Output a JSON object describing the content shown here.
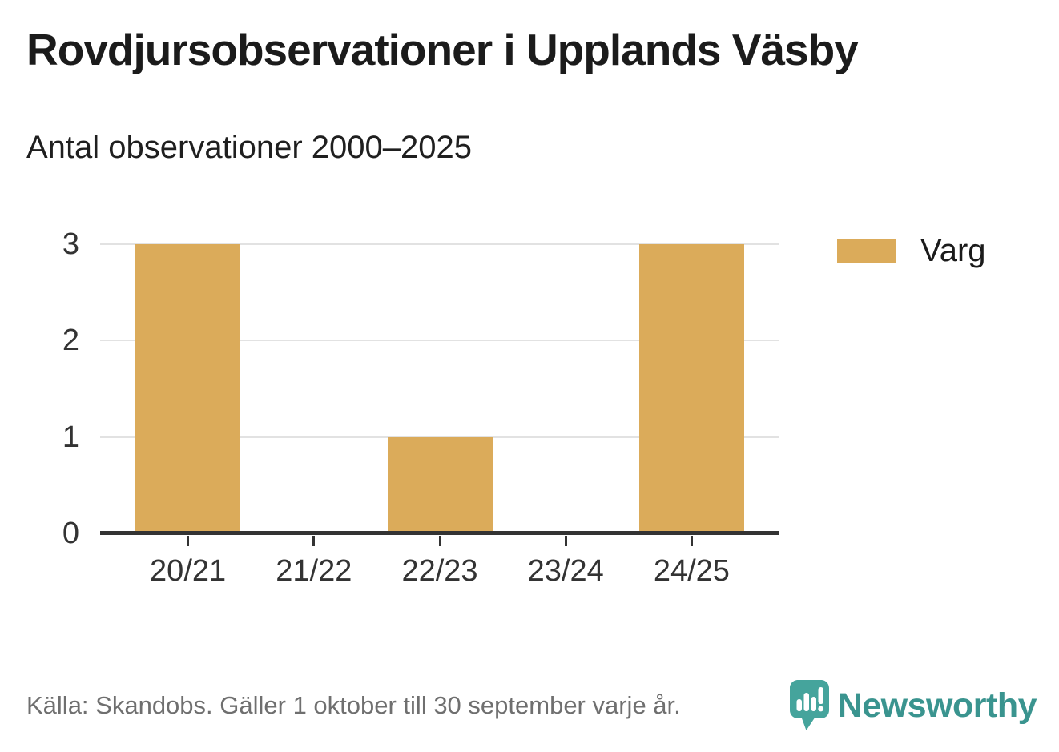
{
  "header": {
    "title": "Rovdjursobservationer i Upplands Väsby",
    "subtitle": "Antal observationer 2000–2025"
  },
  "chart_data": {
    "type": "bar",
    "title": "Rovdjursobservationer i Upplands Väsby",
    "subtitle": "Antal observationer 2000–2025",
    "categories": [
      "20/21",
      "21/22",
      "22/23",
      "23/24",
      "24/25"
    ],
    "series": [
      {
        "name": "Varg",
        "color": "#DBAB5A",
        "values": [
          3,
          0,
          1,
          0,
          3
        ]
      }
    ],
    "xlabel": "",
    "ylabel": "",
    "ylim": [
      0,
      3
    ],
    "yticks": [
      0,
      1,
      2,
      3
    ],
    "grid": "horizontal-only",
    "legend_position": "top-right"
  },
  "legend": {
    "items": [
      {
        "label": "Varg",
        "color": "#DBAB5A"
      }
    ]
  },
  "footer": {
    "source": "Källa: Skandobs. Gäller 1 oktober till 30 september varje år.",
    "brand": "Newsworthy"
  },
  "colors": {
    "bar": "#DBAB5A",
    "axis_line": "#333333",
    "tick_label": "#333333",
    "gridline": "#E2E2E2",
    "title_text": "#1B1B1B",
    "source_text": "#6F6F6F",
    "brand_teal": "#3A948F",
    "logo_teal": "#45A49C",
    "background": "#FFFFFF"
  }
}
